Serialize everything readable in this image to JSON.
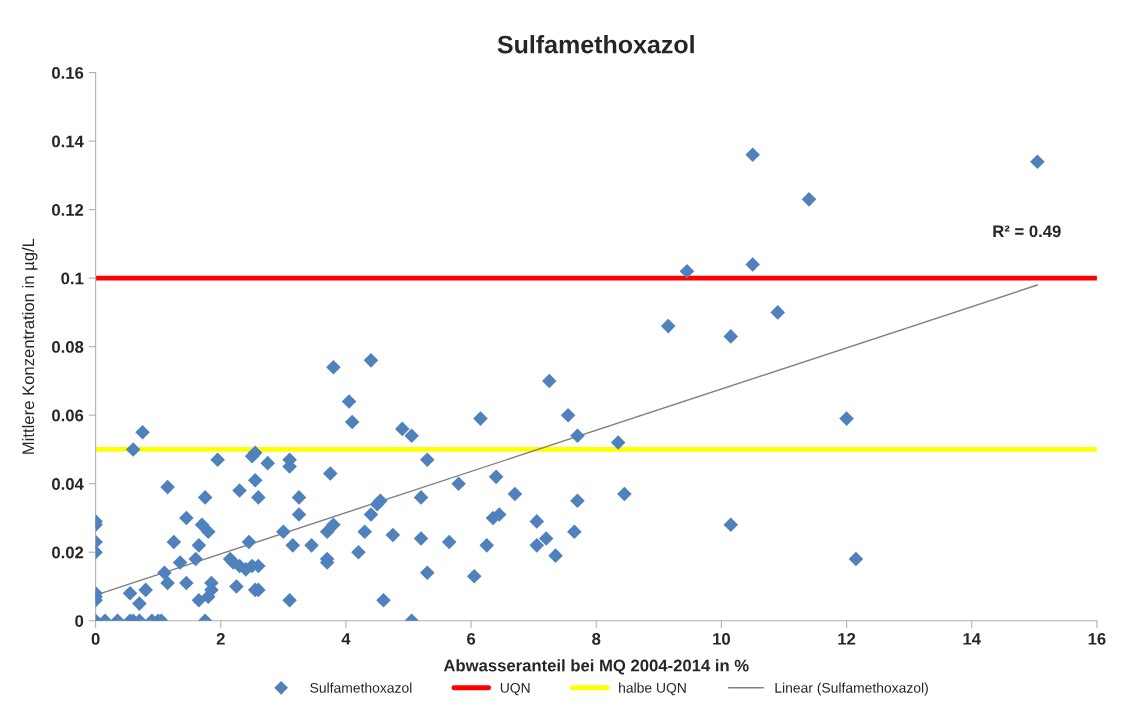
{
  "chart_data": {
    "type": "scatter",
    "title": "Sulfamethoxazol",
    "xlabel": "Abwasseranteil bei MQ 2004-2014 in %",
    "ylabel": "Mittlere Konzentration in µg/L",
    "xlim": [
      0,
      16
    ],
    "xticks": [
      0,
      2,
      4,
      6,
      8,
      10,
      12,
      14,
      16
    ],
    "ylim": [
      0,
      0.16
    ],
    "yticks": [
      0,
      0.02,
      0.04,
      0.06,
      0.08,
      0.1,
      0.12,
      0.14,
      0.16
    ],
    "grid": false,
    "legend": "bottom",
    "marker": "diamond",
    "series": [
      {
        "name": "Sulfamethoxazol",
        "color": "#4f81bd",
        "x": [
          0,
          0,
          0,
          0,
          0,
          0,
          0,
          0,
          0.15,
          0.35,
          0.55,
          0.6,
          0.7,
          0.9,
          1.0,
          1.05,
          1.75,
          5.05,
          0.55,
          0.6,
          0.75,
          0.7,
          0.8,
          1.1,
          1.15,
          1.15,
          1.25,
          1.35,
          1.45,
          1.45,
          1.6,
          1.65,
          1.65,
          1.7,
          1.75,
          1.8,
          1.8,
          1.85,
          1.85,
          1.95,
          2.15,
          2.2,
          2.25,
          2.3,
          2.3,
          2.4,
          2.45,
          2.5,
          2.55,
          2.55,
          2.5,
          2.6,
          2.55,
          2.6,
          2.6,
          2.75,
          3.0,
          3.1,
          3.1,
          3.1,
          3.15,
          3.25,
          3.25,
          3.45,
          3.7,
          3.7,
          3.7,
          3.75,
          3.8,
          3.8,
          4.05,
          4.1,
          4.2,
          4.3,
          4.4,
          4.4,
          4.55,
          4.5,
          4.6,
          4.75,
          4.9,
          5.05,
          5.2,
          5.2,
          5.3,
          5.3,
          5.65,
          5.8,
          6.05,
          6.15,
          6.25,
          6.35,
          6.45,
          6.4,
          6.7,
          7.05,
          7.05,
          7.2,
          7.25,
          7.35,
          7.55,
          7.7,
          7.7,
          7.65,
          8.35,
          8.45,
          9.15,
          9.45,
          10.15,
          10.15,
          10.5,
          10.5,
          10.9,
          11.4,
          12.0,
          12.15,
          15.05
        ],
        "values": [
          0.029,
          0.028,
          0.023,
          0.02,
          0.008,
          0.007,
          0.006,
          0,
          0,
          0,
          0,
          0,
          0,
          0,
          0,
          0,
          0,
          0,
          0.008,
          0.05,
          0.055,
          0.005,
          0.009,
          0.014,
          0.039,
          0.011,
          0.023,
          0.017,
          0.03,
          0.011,
          0.018,
          0.022,
          0.006,
          0.028,
          0.036,
          0.026,
          0.007,
          0.011,
          0.009,
          0.047,
          0.018,
          0.017,
          0.01,
          0.038,
          0.016,
          0.015,
          0.023,
          0.048,
          0.049,
          0.041,
          0.016,
          0.016,
          0.009,
          0.036,
          0.009,
          0.046,
          0.026,
          0.047,
          0.045,
          0.006,
          0.022,
          0.036,
          0.031,
          0.022,
          0.017,
          0.018,
          0.026,
          0.043,
          0.074,
          0.028,
          0.064,
          0.058,
          0.02,
          0.026,
          0.031,
          0.076,
          0.035,
          0.034,
          0.006,
          0.025,
          0.056,
          0.054,
          0.036,
          0.024,
          0.047,
          0.014,
          0.023,
          0.04,
          0.013,
          0.059,
          0.022,
          0.03,
          0.031,
          0.042,
          0.037,
          0.029,
          0.022,
          0.024,
          0.07,
          0.019,
          0.06,
          0.054,
          0.035,
          0.026,
          0.052,
          0.037,
          0.086,
          0.102,
          0.083,
          0.028,
          0.136,
          0.104,
          0.09,
          0.123,
          0.059,
          0.018,
          0.134
        ]
      },
      {
        "name": "Linear (Sulfamethoxazol)",
        "color": "#808080",
        "type": "line",
        "marker": "none",
        "x": [
          0,
          15.05
        ],
        "values": [
          0.0075,
          0.098
        ]
      }
    ],
    "ref_lines": [
      {
        "axis": "y",
        "value": 0.1,
        "label": "UQN",
        "color": "#ff0000"
      },
      {
        "axis": "y",
        "value": 0.05,
        "label": "halbe UQN",
        "color": "#ffff00"
      }
    ],
    "annotations": [
      "R² = 0.49"
    ]
  }
}
